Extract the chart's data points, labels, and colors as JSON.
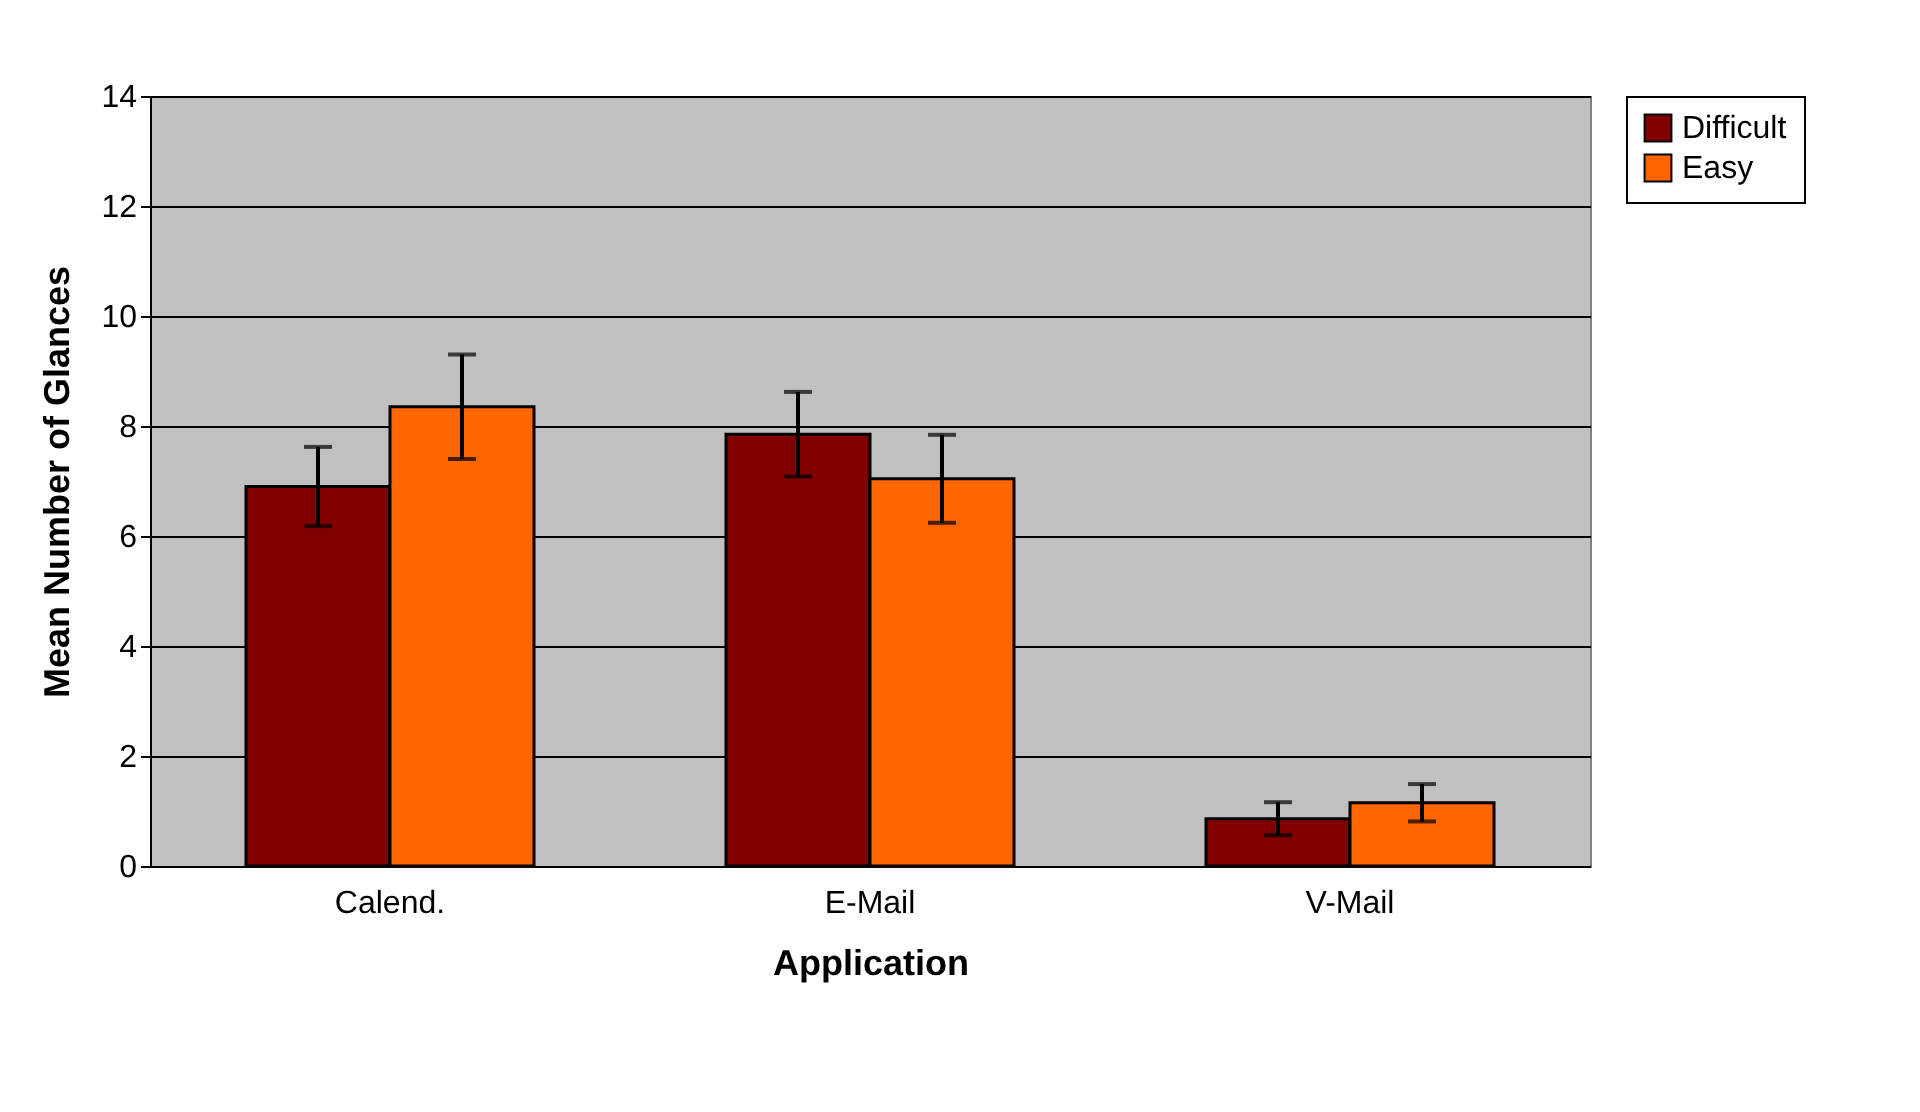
{
  "chart_data": {
    "type": "bar",
    "xlabel": "Application",
    "ylabel": "Mean Number of Glances",
    "categories": [
      "Calend.",
      "E-Mail",
      "V-Mail"
    ],
    "series": [
      {
        "name": "Difficult",
        "color": "#800000",
        "values": [
          6.9,
          7.85,
          0.86
        ],
        "errors": [
          0.72,
          0.77,
          0.3
        ]
      },
      {
        "name": "Easy",
        "color": "#ff6600",
        "values": [
          8.35,
          7.04,
          1.15
        ],
        "errors": [
          0.95,
          0.8,
          0.34
        ]
      }
    ],
    "ylim": [
      0,
      14
    ],
    "yticks": [
      0,
      2,
      4,
      6,
      8,
      10,
      12,
      14
    ],
    "grid": "y",
    "legend": "right"
  }
}
